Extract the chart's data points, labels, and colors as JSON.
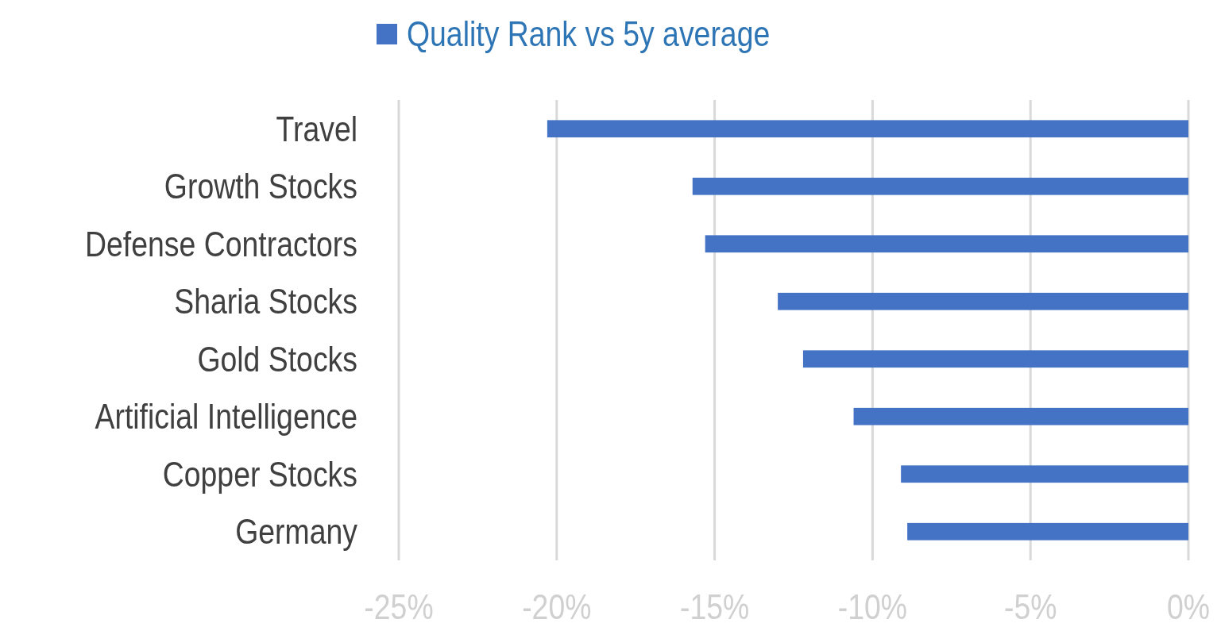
{
  "chart_data": {
    "type": "bar",
    "orientation": "horizontal",
    "categories": [
      "Travel",
      "Growth Stocks",
      "Defense Contractors",
      "Sharia Stocks",
      "Gold Stocks",
      "Artificial Intelligence",
      "Copper Stocks",
      "Germany"
    ],
    "series": [
      {
        "name": "Quality Rank vs 5y average",
        "color": "#4472c4",
        "values": [
          -20.3,
          -15.7,
          -15.3,
          -13.0,
          -12.2,
          -10.6,
          -9.1,
          -8.9
        ]
      }
    ],
    "xlim": [
      -25,
      0
    ],
    "xticks": [
      {
        "value": -25,
        "label": "-25%"
      },
      {
        "value": -20,
        "label": "-20%"
      },
      {
        "value": -15,
        "label": "-15%"
      },
      {
        "value": -10,
        "label": "-10%"
      },
      {
        "value": -5,
        "label": "-5%"
      },
      {
        "value": 0,
        "label": "0%"
      }
    ],
    "grid": "x",
    "legend": "top"
  }
}
